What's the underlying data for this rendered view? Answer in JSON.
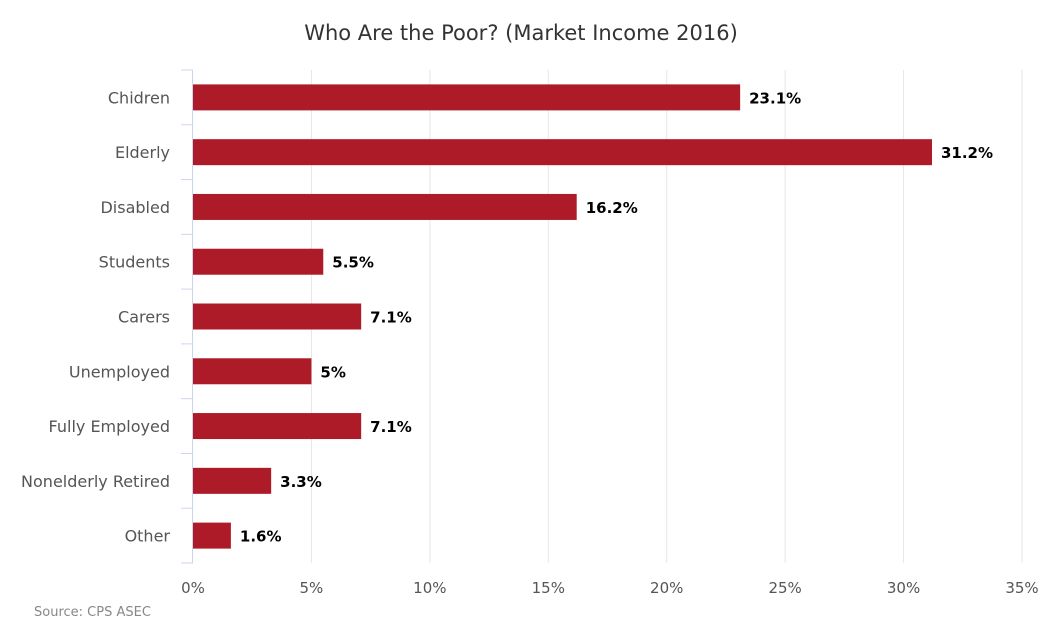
{
  "chart_data": {
    "type": "bar",
    "orientation": "horizontal",
    "title": "Who Are the Poor? (Market Income 2016)",
    "categories": [
      "Chidren",
      "Elderly",
      "Disabled",
      "Students",
      "Carers",
      "Unemployed",
      "Fully Employed",
      "Nonelderly Retired",
      "Other"
    ],
    "values": [
      23.1,
      31.2,
      16.2,
      5.5,
      7.1,
      5,
      7.1,
      3.3,
      1.6
    ],
    "data_labels": [
      "23.1%",
      "31.2%",
      "16.2%",
      "5.5%",
      "7.1%",
      "5%",
      "7.1%",
      "3.3%",
      "1.6%"
    ],
    "xlim": [
      0,
      35
    ],
    "x_ticks": [
      0,
      5,
      10,
      15,
      20,
      25,
      30,
      35
    ],
    "x_tick_labels": [
      "0%",
      "5%",
      "10%",
      "15%",
      "20%",
      "25%",
      "30%",
      "35%"
    ],
    "xlabel": "",
    "ylabel": "",
    "grid": true,
    "bar_color": "#ae1b28",
    "source": "Source: CPS ASEC"
  }
}
